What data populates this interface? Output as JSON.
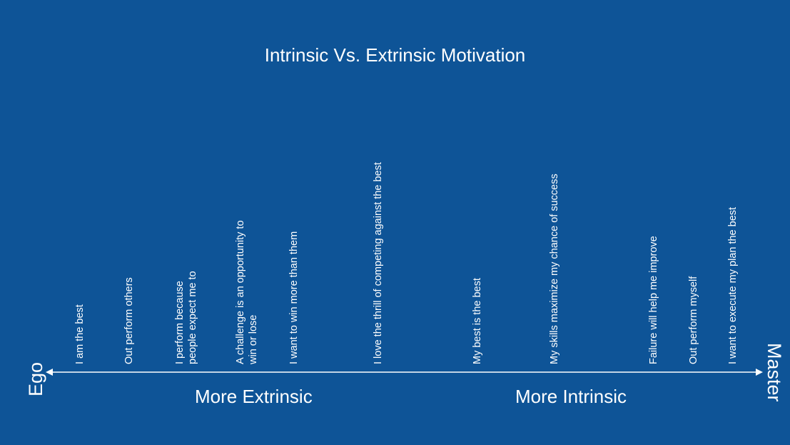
{
  "title": "Intrinsic Vs. Extrinsic Motivation",
  "axis": {
    "left_pole": "Ego",
    "right_pole": "Master",
    "left_zone": "More Extrinsic",
    "right_zone": "More Intrinsic"
  },
  "statements": [
    {
      "lines": [
        "I am the best"
      ]
    },
    {
      "lines": [
        "Out perform others"
      ]
    },
    {
      "lines": [
        "I perform because",
        "people expect me to"
      ]
    },
    {
      "lines": [
        "A challenge is an opportunity to",
        "win or lose"
      ]
    },
    {
      "lines": [
        "I want to win more than them"
      ]
    },
    {
      "lines": [
        "I love the thrill of competing against the best"
      ]
    },
    {
      "lines": [
        "My best is the best"
      ]
    },
    {
      "lines": [
        "My skills maximize my chance of success"
      ]
    },
    {
      "lines": [
        "Failure will help me improve"
      ]
    },
    {
      "lines": [
        "Out perform myself"
      ]
    },
    {
      "lines": [
        "I want to execute my plan the best"
      ]
    }
  ],
  "colors": {
    "background": "#0e5497",
    "foreground": "#ffffff"
  }
}
